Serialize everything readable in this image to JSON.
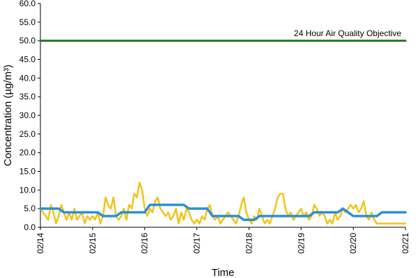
{
  "chart_data": {
    "type": "line",
    "xlabel": "Time",
    "ylabel": "Concentration (µg/m³)",
    "ylim": [
      0,
      60
    ],
    "y_ticks": [
      "0.0",
      "5.0",
      "10.0",
      "15.0",
      "20.0",
      "25.0",
      "30.0",
      "35.0",
      "40.0",
      "45.0",
      "50.0",
      "55.0",
      "60.0"
    ],
    "x_ticks": [
      "02/14",
      "02/15",
      "02/16",
      "02/17",
      "02/18",
      "02/19",
      "02/20",
      "02/21"
    ],
    "xlim": [
      0,
      7
    ],
    "grid": false,
    "annotations": [
      {
        "text": "24 Hour Air Quality Objective",
        "y": 50
      }
    ],
    "series": [
      {
        "color": "#1e7a1e",
        "role": "objective",
        "x": [
          0,
          7
        ],
        "y": [
          50,
          50
        ]
      },
      {
        "color": "#f0c419",
        "role": "hourly",
        "x": [
          0,
          0.1,
          0.15,
          0.2,
          0.25,
          0.3,
          0.35,
          0.4,
          0.45,
          0.5,
          0.55,
          0.6,
          0.65,
          0.7,
          0.75,
          0.8,
          0.85,
          0.9,
          0.95,
          1.0,
          1.05,
          1.1,
          1.15,
          1.2,
          1.25,
          1.3,
          1.35,
          1.4,
          1.45,
          1.5,
          1.55,
          1.6,
          1.65,
          1.7,
          1.75,
          1.8,
          1.85,
          1.9,
          1.95,
          2.0,
          2.05,
          2.1,
          2.15,
          2.2,
          2.25,
          2.3,
          2.35,
          2.4,
          2.45,
          2.5,
          2.55,
          2.6,
          2.65,
          2.7,
          2.75,
          2.8,
          2.85,
          2.9,
          2.95,
          3.0,
          3.05,
          3.1,
          3.15,
          3.2,
          3.25,
          3.3,
          3.35,
          3.4,
          3.45,
          3.5,
          3.55,
          3.6,
          3.65,
          3.7,
          3.75,
          3.8,
          3.85,
          3.9,
          3.95,
          4.0,
          4.05,
          4.1,
          4.15,
          4.2,
          4.25,
          4.3,
          4.35,
          4.4,
          4.45,
          4.5,
          4.55,
          4.6,
          4.65,
          4.7,
          4.75,
          4.8,
          4.85,
          4.9,
          4.95,
          5.0,
          5.05,
          5.1,
          5.15,
          5.2,
          5.25,
          5.3,
          5.35,
          5.4,
          5.45,
          5.5,
          5.55,
          5.6,
          5.65,
          5.7,
          5.75,
          5.8,
          5.85,
          5.9,
          5.95,
          6.0,
          6.05,
          6.1,
          6.15,
          6.2,
          6.25,
          6.3,
          6.35,
          6.4,
          6.45,
          6.5,
          6.55,
          6.6,
          6.65,
          6.7,
          6.75,
          6.8,
          6.85,
          6.9,
          6.95,
          7.0
        ],
        "y": [
          5,
          3,
          2,
          6,
          4,
          1,
          3,
          6,
          4,
          2,
          4,
          2,
          5,
          2,
          3,
          4,
          1,
          3,
          2,
          3,
          2,
          4,
          1,
          3,
          8,
          6,
          5,
          8,
          3,
          2,
          3,
          5,
          2,
          6,
          5,
          9,
          8,
          12,
          10,
          5,
          3,
          5,
          4,
          7,
          8,
          5,
          4,
          3,
          4,
          2,
          3,
          5,
          1,
          4,
          2,
          5,
          4,
          2,
          1,
          2,
          1,
          3,
          2,
          5,
          6,
          3,
          2,
          3,
          1,
          2,
          3,
          4,
          3,
          2,
          1,
          3,
          6,
          8,
          4,
          2,
          1,
          3,
          2,
          5,
          3,
          1,
          2,
          1,
          3,
          5,
          8,
          9,
          9,
          5,
          3,
          4,
          2,
          3,
          4,
          5,
          3,
          4,
          2,
          3,
          6,
          5,
          3,
          4,
          3,
          1,
          2,
          1,
          4,
          2,
          3,
          5,
          4,
          5,
          6,
          5,
          6,
          4,
          5,
          7,
          3,
          2,
          4,
          2,
          1,
          1,
          1,
          1,
          1,
          1,
          1,
          1,
          1,
          1,
          1,
          1
        ]
      },
      {
        "color": "#2b8fd8",
        "role": "daily-running",
        "x": [
          0,
          0.35,
          0.45,
          1.1,
          1.2,
          1.45,
          1.55,
          2.0,
          2.1,
          2.75,
          2.85,
          3.2,
          3.3,
          3.8,
          3.9,
          4.1,
          4.2,
          5.15,
          5.25,
          5.7,
          5.8,
          6.0,
          6.1,
          6.45,
          6.55,
          7.0
        ],
        "y": [
          5,
          5,
          4,
          4,
          3,
          3,
          4,
          4,
          6,
          6,
          5,
          5,
          3,
          3,
          2,
          2,
          3,
          3,
          4,
          4,
          5,
          3,
          3,
          3,
          4,
          4
        ]
      }
    ]
  }
}
